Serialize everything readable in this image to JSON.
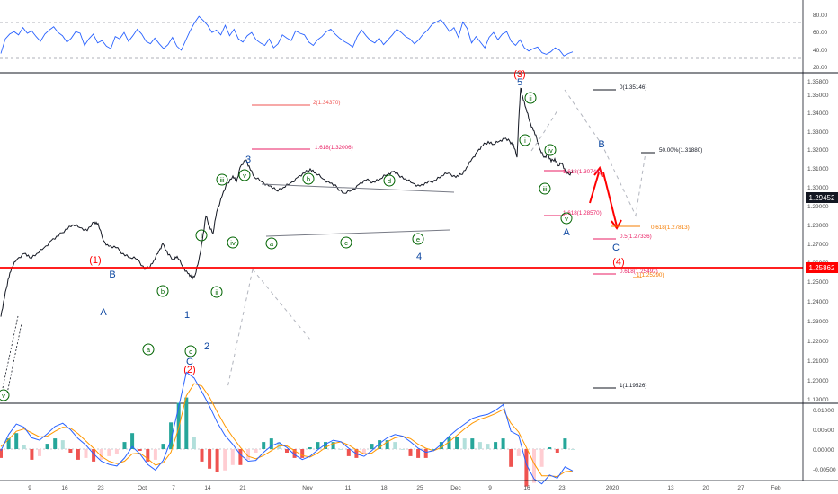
{
  "chart_data": {
    "type": "line",
    "main": {
      "price_ticks": [
        "1.35800",
        "1.35000",
        "1.34000",
        "1.33000",
        "1.32000",
        "1.31000",
        "1.30000",
        "1.29000",
        "1.28000",
        "1.27000",
        "1.26000",
        "1.25000",
        "1.24000",
        "1.23000",
        "1.22000",
        "1.21000",
        "1.20000",
        "1.19000"
      ],
      "last_price": "1.29452",
      "red_level_price": "1.25862",
      "price_line": [
        [
          0,
          1.192
        ],
        [
          4,
          1.205
        ],
        [
          8,
          1.218
        ],
        [
          12,
          1.226
        ],
        [
          18,
          1.232
        ],
        [
          26,
          1.236
        ],
        [
          32,
          1.233
        ],
        [
          40,
          1.236
        ],
        [
          48,
          1.24
        ],
        [
          56,
          1.245
        ],
        [
          64,
          1.248
        ],
        [
          72,
          1.253
        ],
        [
          80,
          1.256
        ],
        [
          88,
          1.254
        ],
        [
          96,
          1.252
        ],
        [
          104,
          1.258
        ],
        [
          108,
          1.257
        ],
        [
          114,
          1.245
        ],
        [
          120,
          1.241
        ],
        [
          128,
          1.24
        ],
        [
          136,
          1.236
        ],
        [
          144,
          1.233
        ],
        [
          152,
          1.232
        ],
        [
          160,
          1.225
        ],
        [
          164,
          1.226
        ],
        [
          170,
          1.231
        ],
        [
          176,
          1.238
        ],
        [
          180,
          1.243
        ],
        [
          186,
          1.235
        ],
        [
          192,
          1.232
        ],
        [
          196,
          1.234
        ],
        [
          202,
          1.227
        ],
        [
          208,
          1.222
        ],
        [
          212,
          1.219
        ],
        [
          216,
          1.221
        ],
        [
          220,
          1.231
        ],
        [
          224,
          1.245
        ],
        [
          228,
          1.262
        ],
        [
          232,
          1.255
        ],
        [
          236,
          1.25
        ],
        [
          240,
          1.265
        ],
        [
          246,
          1.276
        ],
        [
          252,
          1.285
        ],
        [
          258,
          1.29
        ],
        [
          262,
          1.286
        ],
        [
          266,
          1.296
        ],
        [
          272,
          1.301
        ],
        [
          276,
          1.297
        ],
        [
          282,
          1.289
        ],
        [
          290,
          1.286
        ],
        [
          298,
          1.283
        ],
        [
          306,
          1.28
        ],
        [
          314,
          1.282
        ],
        [
          322,
          1.285
        ],
        [
          330,
          1.289
        ],
        [
          338,
          1.292
        ],
        [
          344,
          1.295
        ],
        [
          350,
          1.292
        ],
        [
          358,
          1.288
        ],
        [
          366,
          1.285
        ],
        [
          374,
          1.282
        ],
        [
          382,
          1.278
        ],
        [
          390,
          1.28
        ],
        [
          398,
          1.284
        ],
        [
          406,
          1.287
        ],
        [
          414,
          1.286
        ],
        [
          422,
          1.288
        ],
        [
          430,
          1.291
        ],
        [
          436,
          1.293
        ],
        [
          442,
          1.291
        ],
        [
          450,
          1.288
        ],
        [
          458,
          1.285
        ],
        [
          466,
          1.283
        ],
        [
          474,
          1.285
        ],
        [
          482,
          1.287
        ],
        [
          490,
          1.29
        ],
        [
          498,
          1.292
        ],
        [
          506,
          1.289
        ],
        [
          512,
          1.291
        ],
        [
          518,
          1.296
        ],
        [
          524,
          1.302
        ],
        [
          530,
          1.307
        ],
        [
          536,
          1.311
        ],
        [
          542,
          1.314
        ],
        [
          548,
          1.312
        ],
        [
          554,
          1.314
        ],
        [
          560,
          1.316
        ],
        [
          566,
          1.314
        ],
        [
          570,
          1.312
        ],
        [
          574,
          1.303
        ],
        [
          576,
          1.33
        ],
        [
          578,
          1.351
        ],
        [
          580,
          1.346
        ],
        [
          584,
          1.337
        ],
        [
          588,
          1.328
        ],
        [
          592,
          1.322
        ],
        [
          596,
          1.316
        ],
        [
          600,
          1.308
        ],
        [
          604,
          1.303
        ],
        [
          608,
          1.305
        ],
        [
          612,
          1.3
        ],
        [
          616,
          1.302
        ],
        [
          620,
          1.297
        ],
        [
          624,
          1.299
        ],
        [
          628,
          1.293
        ],
        [
          632,
          1.291
        ],
        [
          636,
          1.294
        ]
      ],
      "waves": [
        {
          "label": "v",
          "style": "green-circle"
        },
        {
          "label": "(1)",
          "style": "red"
        },
        {
          "label": "B",
          "style": "blue"
        },
        {
          "label": "A",
          "style": "blue"
        },
        {
          "label": "b",
          "style": "green-circle"
        },
        {
          "label": "a",
          "style": "green-circle"
        },
        {
          "label": "c",
          "style": "green-circle"
        },
        {
          "label": "C",
          "style": "blue"
        },
        {
          "label": "1",
          "style": "blue"
        },
        {
          "label": "2",
          "style": "blue"
        },
        {
          "label": "(2)",
          "style": "red"
        },
        {
          "label": "i",
          "style": "green-circle"
        },
        {
          "label": "ii",
          "style": "green-circle"
        },
        {
          "label": "iii",
          "style": "green-circle"
        },
        {
          "label": "iv",
          "style": "green-circle"
        },
        {
          "label": "v",
          "style": "green-circle"
        },
        {
          "label": "3",
          "style": "blue"
        },
        {
          "label": "a",
          "style": "green-circle"
        },
        {
          "label": "b",
          "style": "green-circle"
        },
        {
          "label": "c",
          "style": "green-circle"
        },
        {
          "label": "d",
          "style": "green-circle"
        },
        {
          "label": "e",
          "style": "green-circle"
        },
        {
          "label": "4",
          "style": "blue"
        },
        {
          "label": "5",
          "style": "blue"
        },
        {
          "label": "(3)",
          "style": "red"
        },
        {
          "label": "i",
          "style": "green-circle"
        },
        {
          "label": "ii",
          "style": "green-circle"
        },
        {
          "label": "iii",
          "style": "green-circle"
        },
        {
          "label": "iv",
          "style": "green-circle"
        },
        {
          "label": "v",
          "style": "green-circle"
        },
        {
          "label": "A",
          "style": "blue"
        },
        {
          "label": "B",
          "style": "blue"
        },
        {
          "label": "C",
          "style": "blue"
        },
        {
          "label": "(4)",
          "style": "red"
        }
      ],
      "fib_levels": [
        {
          "label": "2(1.34370)",
          "color": "#ef5350"
        },
        {
          "label": "1.618(1.32006)",
          "color": "#e91e63"
        },
        {
          "label": "1.618(1.30746)",
          "color": "#e91e63"
        },
        {
          "label": "1.618(1.28570)",
          "color": "#e91e63"
        },
        {
          "label": "0.5(1.27336)",
          "color": "#e91e63"
        },
        {
          "label": "0.618(1.25492)",
          "color": "#e91e63"
        },
        {
          "label": "0.618(1.27813)",
          "color": "#f57c00"
        },
        {
          "label": "1(1.25290)",
          "color": "#f57c00"
        },
        {
          "label": "0(1.35146)",
          "color": "#131722"
        },
        {
          "label": "50.00%(1.31880)",
          "color": "#131722"
        },
        {
          "label": "1(1.19526)",
          "color": "#131722"
        }
      ]
    },
    "rsi": {
      "ticks": [
        "80.00",
        "60.00",
        "40.00",
        "20.00"
      ],
      "values": [
        34,
        52,
        58,
        61,
        57,
        66,
        59,
        62,
        55,
        49,
        58,
        63,
        67,
        60,
        56,
        48,
        53,
        61,
        59,
        44,
        52,
        58,
        47,
        50,
        43,
        40,
        55,
        52,
        60,
        49,
        56,
        64,
        58,
        49,
        46,
        53,
        46,
        40,
        45,
        54,
        43,
        38,
        50,
        62,
        72,
        80,
        75,
        69,
        60,
        63,
        57,
        69,
        56,
        64,
        52,
        48,
        56,
        60,
        51,
        47,
        44,
        52,
        41,
        46,
        57,
        53,
        50,
        62,
        59,
        57,
        48,
        44,
        51,
        55,
        61,
        64,
        58,
        53,
        49,
        46,
        42,
        55,
        63,
        56,
        50,
        47,
        53,
        45,
        51,
        57,
        64,
        60,
        55,
        52,
        46,
        51,
        58,
        63,
        70,
        73,
        76,
        69,
        61,
        66,
        54,
        73,
        65,
        47,
        55,
        48,
        41,
        54,
        60,
        51,
        58,
        61,
        49,
        44,
        51,
        41,
        37,
        40,
        42,
        35,
        33,
        36,
        41,
        38,
        31,
        34,
        36
      ]
    },
    "macd": {
      "ticks": [
        "0.01000",
        "0.00500",
        "0.00000",
        "-0.00500"
      ],
      "macd_line": [
        -0.0002,
        0.0018,
        0.0031,
        0.0027,
        0.0014,
        0.0011,
        0.0019,
        0.0028,
        0.0032,
        0.0024,
        0.0013,
        0.0005,
        -0.0006,
        -0.0015,
        -0.0019,
        -0.0021,
        -0.0011,
        0.0003,
        -0.0006,
        -0.0019,
        -0.0026,
        -0.0014,
        0.0011,
        0.0052,
        0.0095,
        0.0088,
        0.0071,
        0.0053,
        0.0033,
        0.0017,
        0.0006,
        -0.0007,
        -0.0015,
        -0.0014,
        -0.0004,
        0.0004,
        0.0008,
        0.0002,
        -0.0007,
        -0.0013,
        -0.0009,
        -0.0001,
        0.0006,
        0.0011,
        0.0009,
        0.0001,
        -0.0006,
        -0.0009,
        -0.0002,
        0.0007,
        0.0014,
        0.0018,
        0.0016,
        0.0009,
        0.0001,
        -0.0004,
        -0.0002,
        0.0006,
        0.0016,
        0.0024,
        0.0031,
        0.0038,
        0.0041,
        0.0043,
        0.0048,
        0.0055,
        0.0022,
        0.0017,
        -0.0019,
        -0.0037,
        -0.0043,
        -0.0032,
        -0.0036,
        -0.0022,
        -0.0027
      ],
      "signal_line": [
        0.0003,
        0.0012,
        0.0022,
        0.0025,
        0.002,
        0.0015,
        0.0016,
        0.0022,
        0.0027,
        0.0026,
        0.0019,
        0.001,
        0.0001,
        -0.0009,
        -0.0015,
        -0.0018,
        -0.0015,
        -0.0006,
        -0.0005,
        -0.0012,
        -0.002,
        -0.0017,
        -0.0004,
        0.0026,
        0.0066,
        0.0081,
        0.0078,
        0.0064,
        0.0046,
        0.0029,
        0.0015,
        0.0002,
        -0.0009,
        -0.0012,
        -0.0008,
        -0.0002,
        0.0004,
        0.0004,
        -0.0002,
        -0.0008,
        -0.001,
        -0.0005,
        0.0002,
        0.0007,
        0.0009,
        0.0005,
        -0.0001,
        -0.0006,
        -0.0005,
        0.0002,
        0.0009,
        0.0014,
        0.0016,
        0.0013,
        0.0006,
        0.0001,
        -0.0002,
        0.0002,
        0.0009,
        0.0017,
        0.0025,
        0.0032,
        0.0037,
        0.004,
        0.0044,
        0.0049,
        0.0032,
        0.0021,
        0.0002,
        -0.0018,
        -0.0033,
        -0.0033,
        -0.0034,
        -0.0028,
        -0.0027
      ],
      "histogram": [
        -0.0005,
        0.0006,
        0.0009,
        0.0002,
        -0.0006,
        -0.0004,
        0.0003,
        0.0006,
        0.0005,
        -0.0002,
        -0.0006,
        -0.0005,
        -0.0007,
        -0.0006,
        -0.0004,
        -0.0003,
        0.0004,
        0.0009,
        -0.0001,
        -0.0007,
        -0.0006,
        0.0003,
        0.0015,
        0.0026,
        0.0029,
        0.0007,
        -0.0007,
        -0.0011,
        -0.0013,
        -0.0012,
        -0.0009,
        -0.0009,
        -0.0006,
        -0.0002,
        0.0004,
        0.0006,
        0.0004,
        -0.0002,
        -0.0005,
        -0.0005,
        0.0001,
        0.0004,
        0.0004,
        0.0004,
        0,
        -0.0004,
        -0.0005,
        -0.0003,
        0.0003,
        0.0005,
        0.0005,
        0.0004,
        0,
        -0.0004,
        -0.0005,
        -0.0005,
        0,
        0.0004,
        0.0007,
        0.0007,
        0.0006,
        0.0006,
        0.0004,
        0.0003,
        0.0004,
        0.0006,
        -0.001,
        -0.0004,
        -0.0021,
        -0.0019,
        -0.001,
        0.0001,
        -0.0002,
        0.0006,
        0
      ]
    },
    "x_ticks": [
      "9",
      "16",
      "23",
      "Oct",
      "7",
      "14",
      "21",
      "Nov",
      "11",
      "18",
      "25",
      "Dec",
      "9",
      "16",
      "23",
      "2020",
      "13",
      "20",
      "27",
      "Feb"
    ]
  }
}
